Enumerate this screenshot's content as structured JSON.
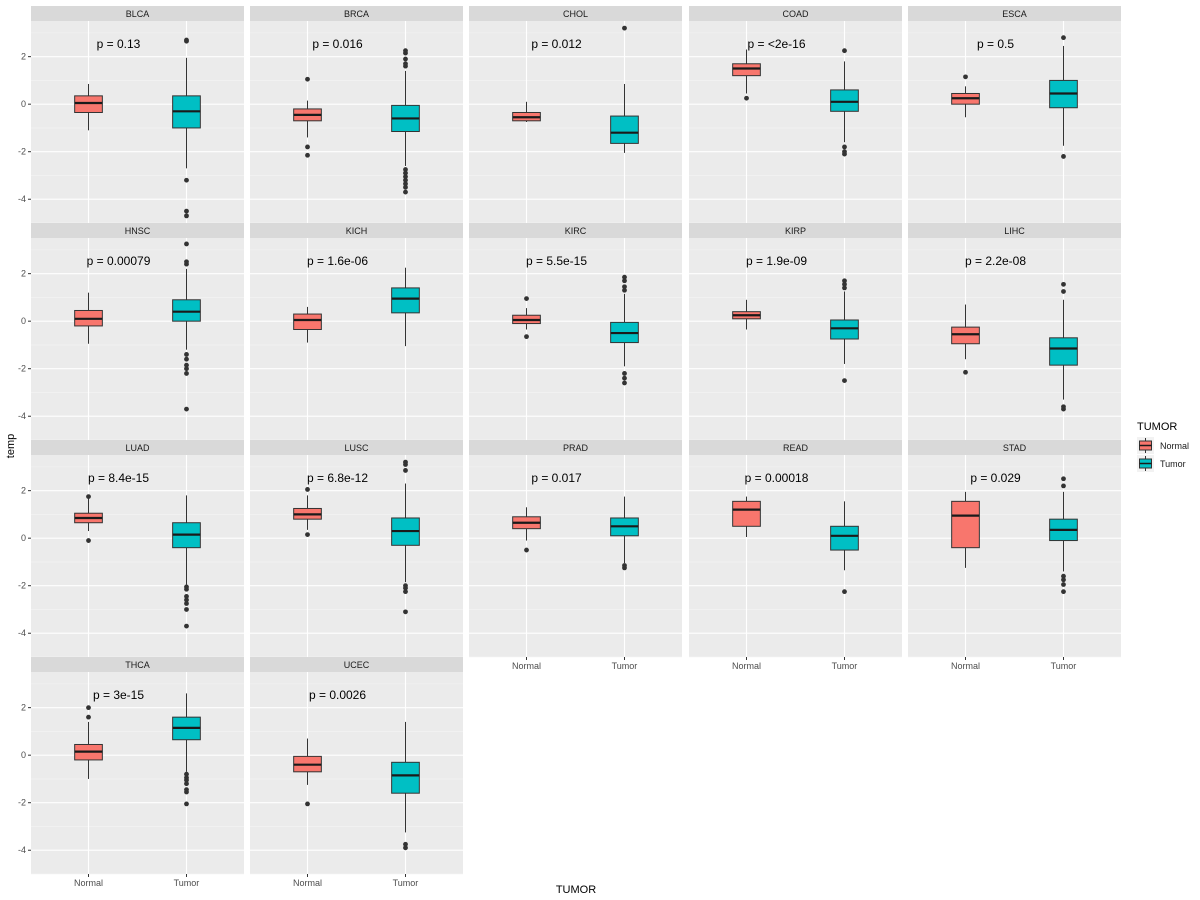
{
  "chart_data": {
    "type": "boxplot",
    "layout": "facet_wrap",
    "xlabel": "TUMOR",
    "ylabel": "temp",
    "ylim": [
      -5,
      3.5
    ],
    "yticks": [
      -4,
      -2,
      0,
      2
    ],
    "categories": [
      "Normal",
      "Tumor"
    ],
    "legend": {
      "title": "TUMOR",
      "position": "right",
      "entries": [
        {
          "label": "Normal",
          "color": "#F8766D"
        },
        {
          "label": "Tumor",
          "color": "#00BFC4"
        }
      ]
    },
    "panels": [
      {
        "name": "BLCA",
        "pvalue": "p = 0.13",
        "Normal": {
          "min": -1.1,
          "q1": -0.35,
          "median": 0.05,
          "q3": 0.35,
          "max": 0.85,
          "outliers": []
        },
        "Tumor": {
          "min": -2.7,
          "q1": -1.0,
          "median": -0.3,
          "q3": 0.35,
          "max": 1.95,
          "outliers": [
            2.65,
            2.7,
            -3.2,
            -4.5,
            -4.7
          ]
        }
      },
      {
        "name": "BRCA",
        "pvalue": "p = 0.016",
        "Normal": {
          "min": -1.4,
          "q1": -0.7,
          "median": -0.45,
          "q3": -0.2,
          "max": 0.15,
          "outliers": [
            1.05,
            -1.8,
            -2.15
          ]
        },
        "Tumor": {
          "min": -2.6,
          "q1": -1.15,
          "median": -0.6,
          "q3": -0.05,
          "max": 1.4,
          "outliers": [
            1.6,
            1.7,
            1.9,
            2.15,
            2.25,
            -2.75,
            -2.9,
            -3.05,
            -3.2,
            -3.35,
            -3.5,
            -3.7
          ]
        }
      },
      {
        "name": "CHOL",
        "pvalue": "p = 0.012",
        "Normal": {
          "min": -0.75,
          "q1": -0.7,
          "median": -0.55,
          "q3": -0.35,
          "max": 0.1,
          "outliers": []
        },
        "Tumor": {
          "min": -2.05,
          "q1": -1.65,
          "median": -1.2,
          "q3": -0.5,
          "max": 0.85,
          "outliers": [
            3.2
          ]
        }
      },
      {
        "name": "COAD",
        "pvalue": "p = <2e-16",
        "Normal": {
          "min": 0.45,
          "q1": 1.2,
          "median": 1.5,
          "q3": 1.7,
          "max": 2.3,
          "outliers": [
            0.25
          ]
        },
        "Tumor": {
          "min": -1.6,
          "q1": -0.3,
          "median": 0.1,
          "q3": 0.6,
          "max": 1.8,
          "outliers": [
            2.25,
            -1.8,
            -2.0,
            -2.1
          ]
        }
      },
      {
        "name": "ESCA",
        "pvalue": "p = 0.5",
        "Normal": {
          "min": -0.55,
          "q1": 0.0,
          "median": 0.25,
          "q3": 0.45,
          "max": 0.75,
          "outliers": [
            1.15
          ]
        },
        "Tumor": {
          "min": -1.75,
          "q1": -0.15,
          "median": 0.45,
          "q3": 1.0,
          "max": 2.45,
          "outliers": [
            2.8,
            -2.2
          ]
        }
      },
      {
        "name": "HNSC",
        "pvalue": "p = 0.00079",
        "Normal": {
          "min": -0.95,
          "q1": -0.2,
          "median": 0.1,
          "q3": 0.45,
          "max": 1.2,
          "outliers": []
        },
        "Tumor": {
          "min": -1.2,
          "q1": 0.0,
          "median": 0.4,
          "q3": 0.9,
          "max": 2.2,
          "outliers": [
            2.4,
            2.5,
            3.25,
            -1.4,
            -1.6,
            -1.85,
            -2.0,
            -2.2,
            -3.7
          ]
        }
      },
      {
        "name": "KICH",
        "pvalue": "p = 1.6e-06",
        "Normal": {
          "min": -0.9,
          "q1": -0.35,
          "median": 0.05,
          "q3": 0.3,
          "max": 0.6,
          "outliers": []
        },
        "Tumor": {
          "min": -1.05,
          "q1": 0.35,
          "median": 0.95,
          "q3": 1.4,
          "max": 2.25,
          "outliers": []
        }
      },
      {
        "name": "KIRC",
        "pvalue": "p = 5.5e-15",
        "Normal": {
          "min": -0.35,
          "q1": -0.1,
          "median": 0.05,
          "q3": 0.25,
          "max": 0.55,
          "outliers": [
            0.95,
            -0.65
          ]
        },
        "Tumor": {
          "min": -1.9,
          "q1": -0.9,
          "median": -0.5,
          "q3": -0.05,
          "max": 1.15,
          "outliers": [
            1.3,
            1.45,
            1.7,
            1.85,
            -2.2,
            -2.4,
            -2.6
          ]
        }
      },
      {
        "name": "KIRP",
        "pvalue": "p = 1.9e-09",
        "Normal": {
          "min": -0.35,
          "q1": 0.1,
          "median": 0.25,
          "q3": 0.4,
          "max": 0.9,
          "outliers": []
        },
        "Tumor": {
          "min": -1.8,
          "q1": -0.75,
          "median": -0.3,
          "q3": 0.05,
          "max": 1.25,
          "outliers": [
            1.4,
            1.55,
            1.7,
            -2.5
          ]
        }
      },
      {
        "name": "LIHC",
        "pvalue": "p = 2.2e-08",
        "Normal": {
          "min": -1.6,
          "q1": -0.95,
          "median": -0.55,
          "q3": -0.25,
          "max": 0.7,
          "outliers": [
            -2.15
          ]
        },
        "Tumor": {
          "min": -3.3,
          "q1": -1.85,
          "median": -1.15,
          "q3": -0.7,
          "max": 0.9,
          "outliers": [
            1.25,
            1.55,
            -3.6,
            -3.7
          ]
        }
      },
      {
        "name": "LUAD",
        "pvalue": "p = 8.4e-15",
        "Normal": {
          "min": 0.3,
          "q1": 0.65,
          "median": 0.85,
          "q3": 1.05,
          "max": 1.7,
          "outliers": [
            1.75,
            -0.1
          ]
        },
        "Tumor": {
          "min": -1.95,
          "q1": -0.4,
          "median": 0.15,
          "q3": 0.65,
          "max": 1.8,
          "outliers": [
            -2.05,
            -2.15,
            -2.45,
            -2.6,
            -2.75,
            -3.0,
            -3.7
          ]
        }
      },
      {
        "name": "LUSC",
        "pvalue": "p = 6.8e-12",
        "Normal": {
          "min": 0.35,
          "q1": 0.8,
          "median": 1.0,
          "q3": 1.25,
          "max": 1.8,
          "outliers": [
            2.05,
            0.15
          ]
        },
        "Tumor": {
          "min": -1.85,
          "q1": -0.3,
          "median": 0.3,
          "q3": 0.85,
          "max": 2.3,
          "outliers": [
            2.85,
            3.1,
            3.2,
            -2.0,
            -2.1,
            -2.25,
            -3.1
          ]
        }
      },
      {
        "name": "PRAD",
        "pvalue": "p = 0.017",
        "Normal": {
          "min": -0.1,
          "q1": 0.4,
          "median": 0.65,
          "q3": 0.9,
          "max": 1.3,
          "outliers": [
            -0.5
          ]
        },
        "Tumor": {
          "min": -1.05,
          "q1": 0.1,
          "median": 0.5,
          "q3": 0.85,
          "max": 1.75,
          "outliers": [
            -1.15,
            -1.25
          ]
        }
      },
      {
        "name": "READ",
        "pvalue": "p = 0.00018",
        "Normal": {
          "min": 0.05,
          "q1": 0.5,
          "median": 1.2,
          "q3": 1.55,
          "max": 1.75,
          "outliers": []
        },
        "Tumor": {
          "min": -1.35,
          "q1": -0.5,
          "median": 0.1,
          "q3": 0.5,
          "max": 1.55,
          "outliers": [
            -2.25
          ]
        }
      },
      {
        "name": "STAD",
        "pvalue": "p = 0.029",
        "Normal": {
          "min": -1.25,
          "q1": -0.4,
          "median": 0.95,
          "q3": 1.55,
          "max": 1.95,
          "outliers": []
        },
        "Tumor": {
          "min": -1.4,
          "q1": -0.1,
          "median": 0.35,
          "q3": 0.8,
          "max": 1.95,
          "outliers": [
            2.2,
            2.5,
            -1.6,
            -1.75,
            -1.95,
            -2.25
          ]
        }
      },
      {
        "name": "THCA",
        "pvalue": "p = 3e-15",
        "Normal": {
          "min": -1.0,
          "q1": -0.2,
          "median": 0.15,
          "q3": 0.45,
          "max": 1.4,
          "outliers": [
            1.6,
            2.0
          ]
        },
        "Tumor": {
          "min": -0.7,
          "q1": 0.65,
          "median": 1.15,
          "q3": 1.6,
          "max": 2.6,
          "outliers": [
            -0.8,
            -0.95,
            -1.05,
            -1.2,
            -1.45,
            -1.55,
            -2.05
          ]
        }
      },
      {
        "name": "UCEC",
        "pvalue": "p = 0.0026",
        "Normal": {
          "min": -1.25,
          "q1": -0.7,
          "median": -0.4,
          "q3": -0.05,
          "max": 0.7,
          "outliers": [
            -2.05
          ]
        },
        "Tumor": {
          "min": -3.25,
          "q1": -1.6,
          "median": -0.85,
          "q3": -0.3,
          "max": 1.4,
          "outliers": [
            -3.75,
            -3.9
          ]
        }
      }
    ]
  }
}
